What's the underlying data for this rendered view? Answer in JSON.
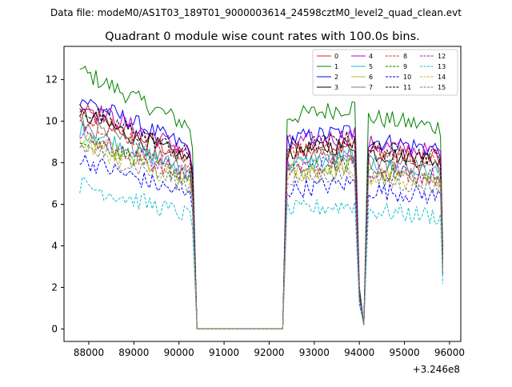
{
  "chart_data": {
    "type": "line",
    "suptitle": "Data file: modeM0/AS1T03_189T01_9000003614_24598cztM0_level2_quad_clean.evt",
    "title": "Quadrant 0 module wise count rates with 100.0s bins.",
    "xlabel": "",
    "ylabel": "",
    "x_offset_label": "+3.246e8",
    "xlim": [
      87450,
      96250
    ],
    "ylim": [
      -0.6,
      13.6
    ],
    "x_ticks": [
      88000,
      89000,
      90000,
      91000,
      92000,
      93000,
      94000,
      95000,
      96000
    ],
    "x_tick_labels": [
      "88000",
      "89000",
      "90000",
      "91000",
      "92000",
      "93000",
      "94000",
      "95000",
      "96000"
    ],
    "y_ticks": [
      0,
      2,
      4,
      6,
      8,
      10,
      12
    ],
    "y_tick_labels": [
      "0",
      "2",
      "4",
      "6",
      "8",
      "10",
      "12"
    ],
    "legend_position": "top-right",
    "series": [
      {
        "name": "0",
        "color": "#d62728",
        "dash": "solid",
        "base": 8.6
      },
      {
        "name": "1",
        "color": "#008000",
        "dash": "solid",
        "base": 10.2
      },
      {
        "name": "2",
        "color": "#0000ff",
        "dash": "solid",
        "base": 9.1
      },
      {
        "name": "3",
        "color": "#000000",
        "dash": "solid",
        "base": 8.5
      },
      {
        "name": "4",
        "color": "#bf00bf",
        "dash": "solid",
        "base": 8.9
      },
      {
        "name": "5",
        "color": "#17becf",
        "dash": "solid",
        "base": 7.9
      },
      {
        "name": "6",
        "color": "#bcbd22",
        "dash": "solid",
        "base": 7.5
      },
      {
        "name": "7",
        "color": "#7f7f7f",
        "dash": "solid",
        "base": 8.1
      },
      {
        "name": "8",
        "color": "#d62728",
        "dash": "dashed",
        "base": 8.4
      },
      {
        "name": "9",
        "color": "#008000",
        "dash": "dashed",
        "base": 7.6
      },
      {
        "name": "10",
        "color": "#0000ff",
        "dash": "dashed",
        "base": 6.7
      },
      {
        "name": "11",
        "color": "#000000",
        "dash": "dashed",
        "base": 8.7
      },
      {
        "name": "12",
        "color": "#bf00bf",
        "dash": "dashed",
        "base": 7.7
      },
      {
        "name": "13",
        "color": "#17becf",
        "dash": "dashed",
        "base": 5.7
      },
      {
        "name": "14",
        "color": "#bcbd22",
        "dash": "dashed",
        "base": 7.3
      },
      {
        "name": "15",
        "color": "#7f7f7f",
        "dash": "dashed",
        "base": 7.2
      }
    ],
    "segments": [
      {
        "x_start": 87800,
        "x_end": 90300,
        "start_factor": 1.22,
        "end_factor": 0.95
      },
      {
        "x_start": 90400,
        "x_end": 92300,
        "level": 0
      },
      {
        "x_start": 92400,
        "x_end": 93900,
        "start_factor": 1.0,
        "end_factor": 1.05
      },
      {
        "x_start": 94200,
        "x_end": 95800,
        "start_factor": 1.0,
        "end_factor": 0.95
      }
    ]
  }
}
